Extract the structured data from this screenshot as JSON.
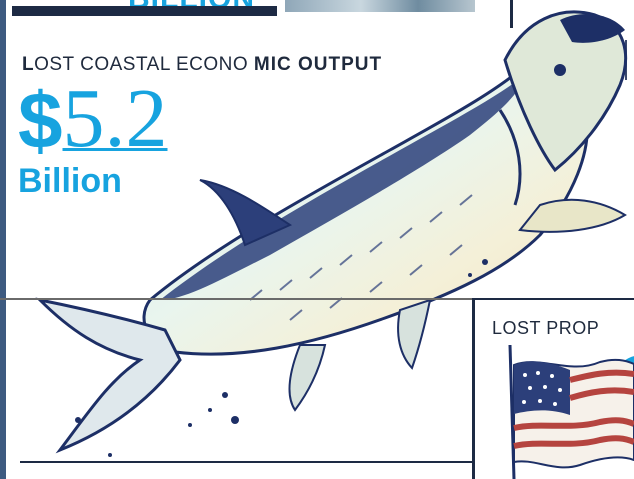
{
  "top": {
    "cut_text": "BILLION"
  },
  "left_panel": {
    "label_first_letter": "L",
    "label_rest": "OST COASTAL ECONO",
    "label_bold": "MIC OUTPUT",
    "dollar": "$",
    "amount": "5.2",
    "unit": "Billion"
  },
  "right_panel": {
    "label": "LOST PROP"
  },
  "colors": {
    "accent_blue": "#17a3df",
    "navy": "#1d2a44",
    "fish_belly": "#e7f2f1"
  },
  "illustrations": {
    "fish": "tarpon-fish-illustration",
    "flag": "american-flag-illustration"
  }
}
